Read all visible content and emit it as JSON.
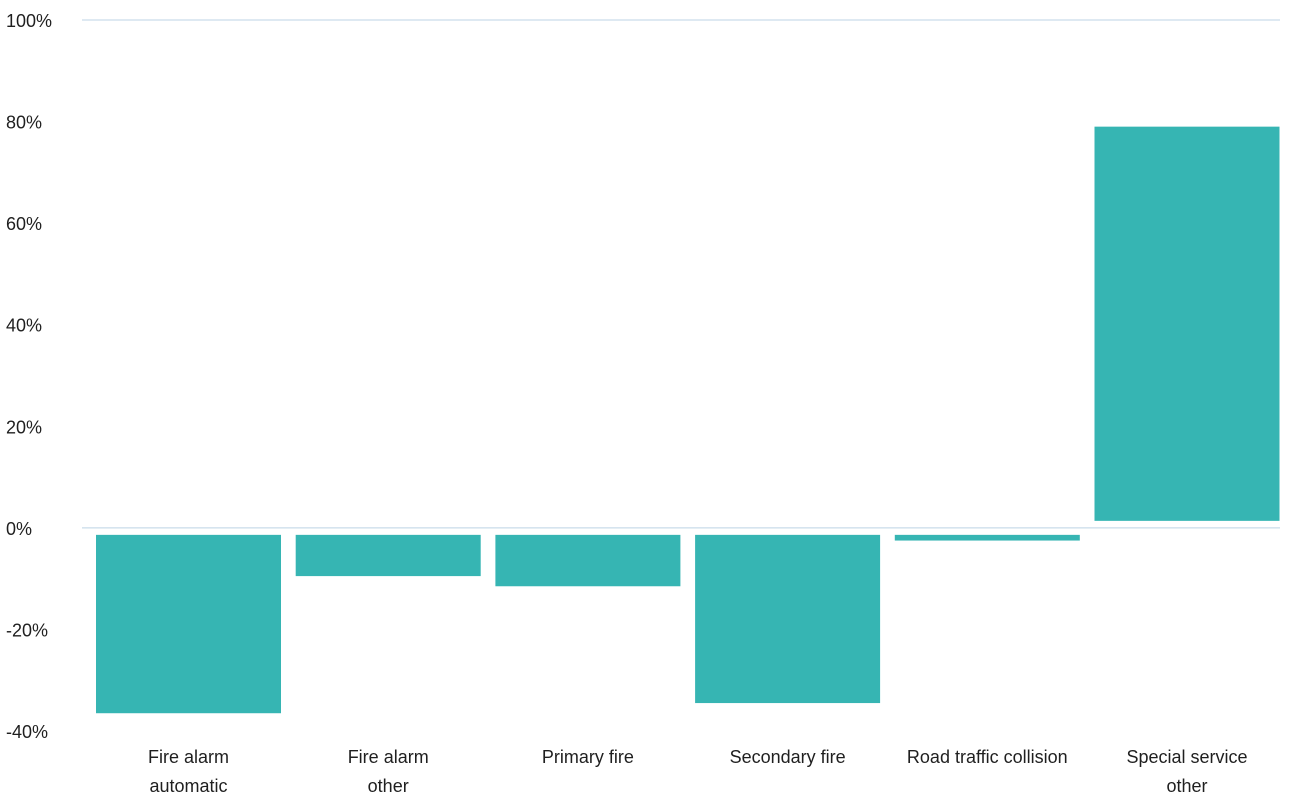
{
  "chart_data": {
    "type": "bar",
    "categories": [
      [
        "Fire alarm",
        "automatic"
      ],
      [
        "Fire alarm",
        "other"
      ],
      [
        "Primary fire"
      ],
      [
        "Secondary fire"
      ],
      [
        "Road traffic collision"
      ],
      [
        "Special service",
        "other"
      ]
    ],
    "values": [
      -36.5,
      -9.5,
      -11.5,
      -34.5,
      -2.5,
      79
    ],
    "ylim": [
      -40,
      100
    ],
    "yticks": [
      100,
      80,
      60,
      40,
      20,
      0,
      -20,
      -40
    ],
    "ytick_suffix": "%",
    "grid": true,
    "bar_color": "#36b5b3",
    "grid_color": "#c9dcea"
  }
}
